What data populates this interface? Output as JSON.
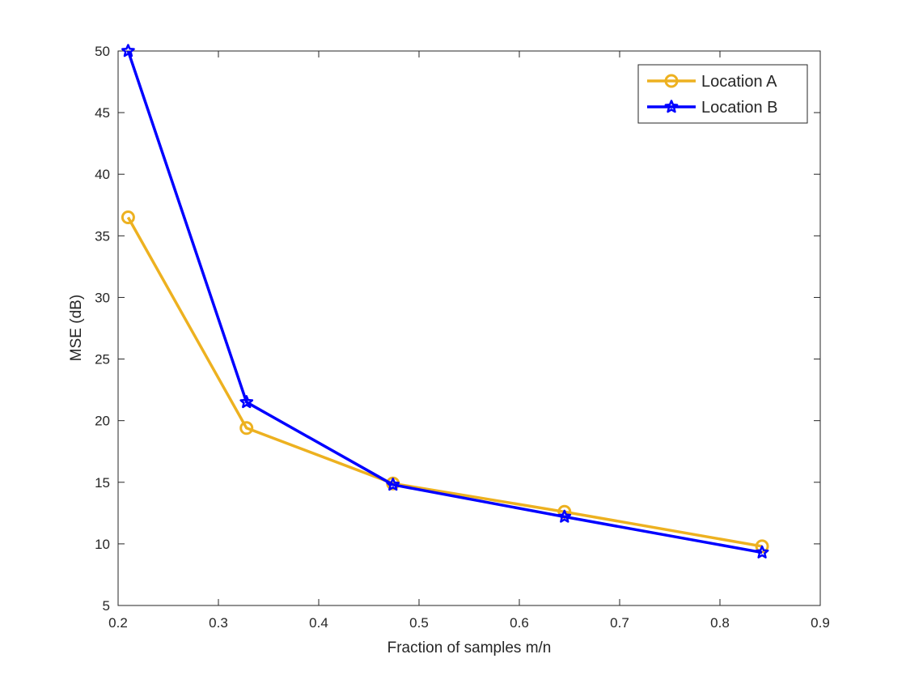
{
  "chart_data": {
    "type": "line",
    "title": "",
    "xlabel": "Fraction of samples m/n",
    "ylabel": "MSE (dB)",
    "xlim": [
      0.2,
      0.9
    ],
    "ylim": [
      5,
      50
    ],
    "x_ticks": [
      0.2,
      0.3,
      0.4,
      0.5,
      0.6,
      0.7,
      0.8,
      0.9
    ],
    "x_tick_labels": [
      "0.2",
      "0.3",
      "0.4",
      "0.5",
      "0.6",
      "0.7",
      "0.8",
      "0.9"
    ],
    "y_ticks": [
      5,
      10,
      15,
      20,
      25,
      30,
      35,
      40,
      45,
      50
    ],
    "y_tick_labels": [
      "5",
      "10",
      "15",
      "20",
      "25",
      "30",
      "35",
      "40",
      "45",
      "50"
    ],
    "grid": false,
    "legend_position": "top-right",
    "series": [
      {
        "name": "Location A",
        "color": "#EDB120",
        "marker": "circle",
        "x": [
          0.21,
          0.328,
          0.474,
          0.645,
          0.842
        ],
        "y": [
          36.5,
          19.4,
          14.9,
          12.6,
          9.8
        ]
      },
      {
        "name": "Location B",
        "color": "#0000FF",
        "marker": "star",
        "x": [
          0.21,
          0.328,
          0.474,
          0.645,
          0.842
        ],
        "y": [
          50.0,
          21.5,
          14.8,
          12.2,
          9.3
        ]
      }
    ]
  }
}
